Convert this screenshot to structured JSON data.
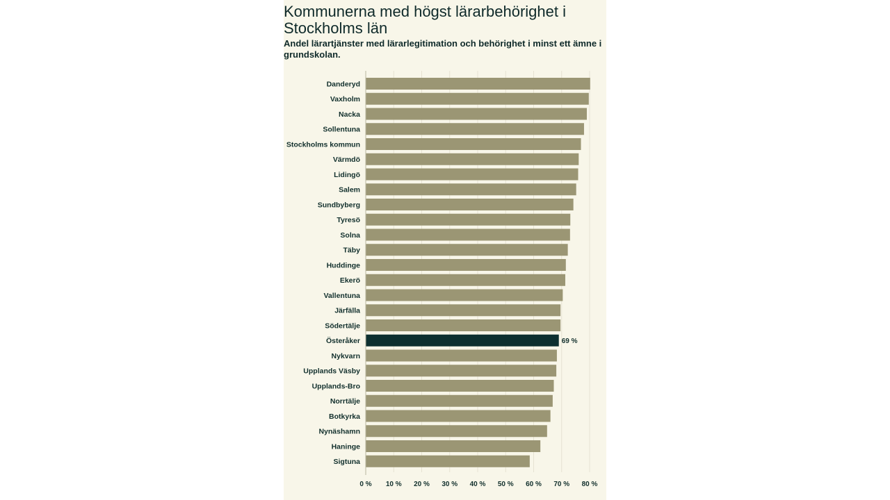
{
  "chart_data": {
    "type": "bar",
    "orientation": "horizontal",
    "title": "Kommunerna med högst lärarbehörighet i Stockholms län",
    "subtitle": "Andel lärartjänster med lärarlegitimation och behörighet i minst ett ämne i grundskolan.",
    "categories": [
      "Danderyd",
      "Vaxholm",
      "Nacka",
      "Sollentuna",
      "Stockholms kommun",
      "Värmdö",
      "Lidingö",
      "Salem",
      "Sundbyberg",
      "Tyresö",
      "Solna",
      "Täby",
      "Huddinge",
      "Ekerö",
      "Vallentuna",
      "Järfälla",
      "Södertälje",
      "Österåker",
      "Nykvarn",
      "Upplands Väsby",
      "Upplands-Bro",
      "Norrtälje",
      "Botkyrka",
      "Nynäshamn",
      "Haninge",
      "Sigtuna"
    ],
    "values": [
      80.2,
      79.7,
      79.0,
      78.0,
      76.9,
      76.1,
      75.9,
      75.2,
      74.2,
      73.1,
      73.0,
      72.2,
      71.5,
      71.3,
      70.4,
      69.6,
      69.6,
      69.0,
      68.3,
      68.1,
      67.2,
      66.8,
      66.0,
      64.8,
      62.4,
      58.6
    ],
    "highlight": {
      "category": "Österåker",
      "label": "69 %"
    },
    "xlim": [
      0,
      80
    ],
    "xticks": [
      "0 %",
      "10 %",
      "20 %",
      "30 %",
      "40 %",
      "50 %",
      "60 %",
      "70 %",
      "80 %"
    ],
    "grid": true,
    "xlabel": "",
    "ylabel": ""
  },
  "colors": {
    "bar": "#9b9674",
    "highlight_bar": "#0d3030",
    "background": "#f8f6e9",
    "grid": "#e6e2d2",
    "text": "#0f2a2a"
  }
}
